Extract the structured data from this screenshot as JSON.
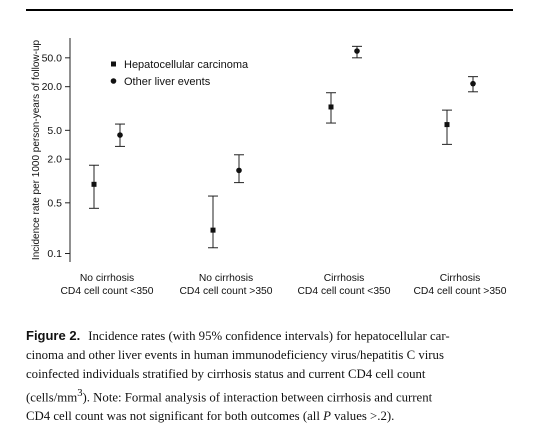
{
  "chart_data": {
    "type": "scatter",
    "title": "",
    "xlabel": "",
    "ylabel": "Incidence rate per 1000 person-years of follow-up",
    "yscale": "log",
    "ylim": [
      0.07,
      100
    ],
    "yticks": [
      0.1,
      0.5,
      2.0,
      5.0,
      20.0,
      50.0
    ],
    "ytick_labels": [
      "0.1",
      "0.5",
      "2.0",
      "5.0",
      "20.0",
      "50.0"
    ],
    "categories": [
      [
        "No cirrhosis",
        "CD4 cell count <350"
      ],
      [
        "No cirrhosis",
        "CD4 cell count >350"
      ],
      [
        "Cirrhosis",
        "CD4 cell count <350"
      ],
      [
        "Cirrhosis",
        "CD4 cell count >350"
      ]
    ],
    "legend_position": "top-left",
    "series": [
      {
        "name": "Hepatocellular carcinoma",
        "marker": "square",
        "values": [
          0.9,
          0.21,
          10.5,
          6.0
        ],
        "ci_lower": [
          0.42,
          0.12,
          6.3,
          3.2
        ],
        "ci_upper": [
          1.65,
          0.62,
          16.5,
          9.5
        ]
      },
      {
        "name": "Other liver events",
        "marker": "circle",
        "values": [
          4.3,
          1.4,
          62.0,
          22.0
        ],
        "ci_lower": [
          3.0,
          0.95,
          50.0,
          17.0
        ],
        "ci_upper": [
          6.1,
          2.3,
          72.0,
          27.5
        ]
      }
    ],
    "grid": false
  },
  "caption": {
    "figure_label": "Figure 2.",
    "line1": "Incidence rates (with 95% confidence intervals) for hepatocellular car-",
    "line2": "cinoma and other liver events in human immunodeficiency virus/hepatitis C virus",
    "line3": "coinfected individuals stratified by cirrhosis status and current CD4 cell count",
    "line4_a": "(cells/mm",
    "line4_sup": "3",
    "line4_b": "). Note: Formal analysis of interaction between cirrhosis and current",
    "line5_a": "CD4 cell count was not significant for both outcomes (all",
    "line5_p": "P",
    "line5_b": "values >.2)."
  }
}
